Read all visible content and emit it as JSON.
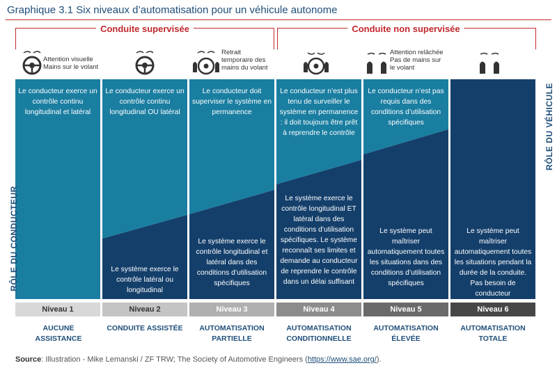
{
  "title": "Graphique 3.1  Six niveaux d’automatisation pour un véhicule autonome",
  "brackets": {
    "supervised": "Conduite supervisée",
    "unsupervised": "Conduite non supervisée"
  },
  "icon_captions": [
    "Attention visuelle\nMains sur le volant",
    "",
    "Retrait\ntemporaire des\nmains du volant",
    "",
    "Attention relâchée\nPas de mains sur\nle volant",
    ""
  ],
  "driver_texts": [
    "Le conducteur exerce un contrôle continu longitudinal et latéral",
    "Le conducteur exerce un contrôle continu longitudinal OU latéral",
    "Le conducteur doit superviser le système en permanence",
    "Le conducteur n’est plus tenu de surveiller le système en permanence : il doit toujours être prêt à reprendre le contrôle",
    "Le conducteur n’est pas requis dans des conditions d’utilisation spécifiques",
    ""
  ],
  "system_texts": [
    "",
    "Le système exerce le contrôle latéral ou longitudinal",
    "Le système exerce le contrôle longitudinal et latéral dans des conditions d’utilisation spécifiques",
    "Le système exerce le contrôle longitudinal ET latéral dans des conditions d’utilisation spécifiques. Le système reconnaît ses limites et demande au conducteur de reprendre le contrôle dans un délai suffisant",
    "Le système peut maîtriser automatiquement toutes les situations dans des conditions d’utilisation spécifiques",
    "Le système peut maîtriser automatiquement toutes les situations pendant la durée de la conduite. Pas besoin de conducteur"
  ],
  "side_labels": {
    "left": "RÔLE DU CONDUCTEUR",
    "right": "RÔLE DU VÉHICULE"
  },
  "levels": [
    {
      "label": "Niveau 1",
      "name": "AUCUNE ASSISTANCE"
    },
    {
      "label": "Niveau 2",
      "name": "CONDUITE ASSISTÉE"
    },
    {
      "label": "Niveau 3",
      "name": "AUTOMATISATION PARTIELLE"
    },
    {
      "label": "Niveau 4",
      "name": "AUTOMATISATION CONDITIONNELLE"
    },
    {
      "label": "Niveau 5",
      "name": "AUTOMATISATION ÉLEVÉE"
    },
    {
      "label": "Niveau 6",
      "name": "AUTOMATISATION TOTALE"
    }
  ],
  "colors": {
    "driver": "#1a7ea1",
    "system": "#143f6b",
    "level_boxes": [
      "#d8d8d8",
      "#c4c4c4",
      "#b0b0b0",
      "#8c8c8c",
      "#6a6a6a",
      "#474747"
    ],
    "accent": "#c1272d"
  },
  "source": {
    "label": "Source",
    "text": ": Illustration - Mike Lemanski / ZF TRW; The Society of Automotive Engineers (",
    "link": "https://www.sae.org/",
    "end": ")."
  }
}
